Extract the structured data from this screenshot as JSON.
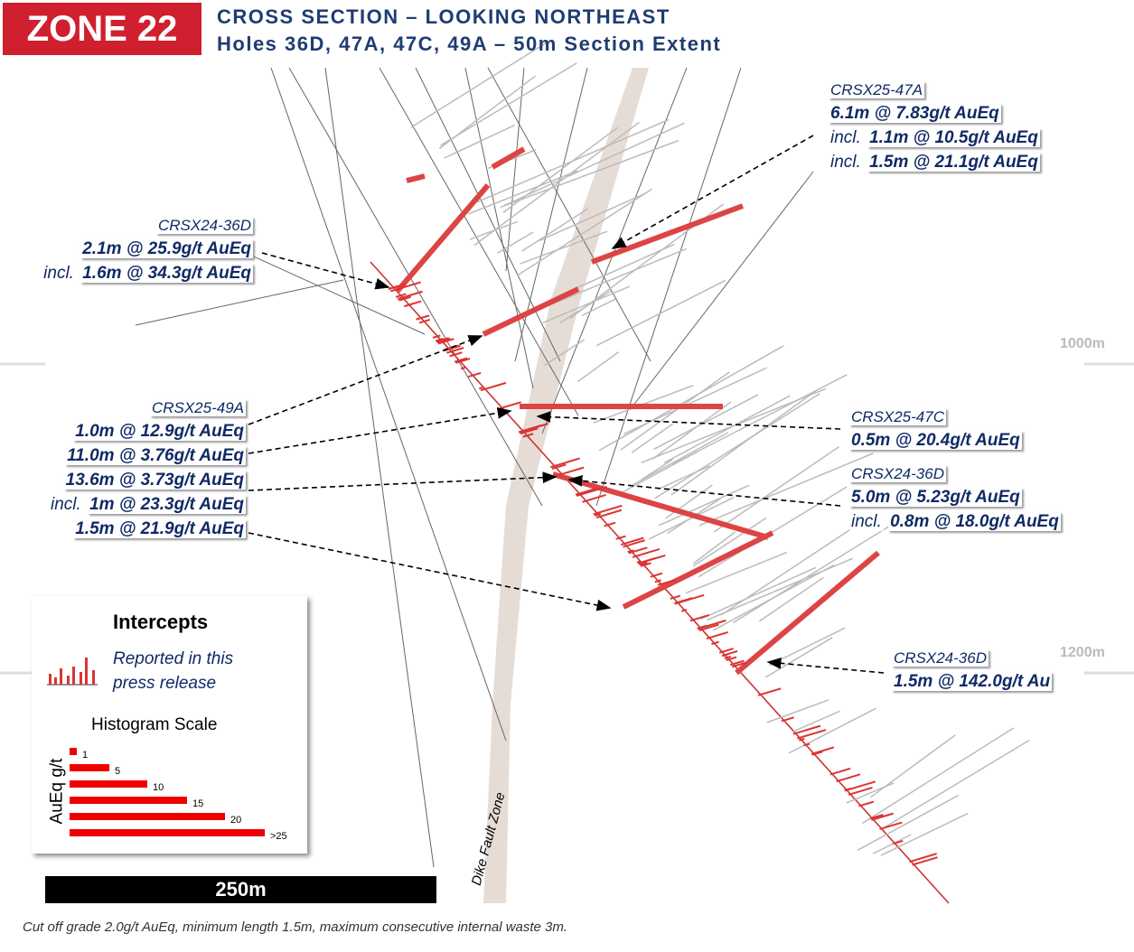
{
  "header": {
    "badge": "ZONE 22",
    "title": "CROSS SECTION – LOOKING NORTHEAST",
    "subtitle": "Holes 36D, 47A, 47C, 49A – 50m Section Extent"
  },
  "depth_labels": [
    "1000m",
    "1200m"
  ],
  "callouts": [
    {
      "hole": "CRSX25-47A",
      "lines": [
        {
          "text": "6.1m @ 7.83g/t AuEq"
        },
        {
          "prefix": "incl.",
          "text": "1.1m @ 10.5g/t AuEq"
        },
        {
          "prefix": "incl.",
          "text": "1.5m @ 21.1g/t AuEq"
        }
      ]
    },
    {
      "hole": "CRSX24-36D",
      "lines": [
        {
          "text": "2.1m @ 25.9g/t AuEq"
        },
        {
          "prefix": "incl.",
          "text": "1.6m @ 34.3g/t AuEq"
        }
      ]
    },
    {
      "hole": "CRSX25-49A",
      "lines": [
        {
          "text": "1.0m @ 12.9g/t AuEq"
        },
        {
          "text": "11.0m @ 3.76g/t AuEq"
        },
        {
          "text": "13.6m @ 3.73g/t AuEq"
        },
        {
          "prefix": "incl.",
          "text": "1m @ 23.3g/t AuEq"
        },
        {
          "text": "1.5m @ 21.9g/t AuEq"
        }
      ]
    },
    {
      "hole": "CRSX25-47C",
      "lines": [
        {
          "text": "0.5m @ 20.4g/t AuEq"
        }
      ]
    },
    {
      "hole": "CRSX24-36D",
      "lines": [
        {
          "text": "5.0m @ 5.23g/t AuEq"
        },
        {
          "prefix": "incl.",
          "text": "0.8m @ 18.0g/t AuEq"
        }
      ]
    },
    {
      "hole": "CRSX24-36D",
      "lines": [
        {
          "text": "1.5m @ 142.0g/t Au"
        }
      ]
    }
  ],
  "legend": {
    "title": "Intercepts",
    "description": [
      "Reported in this",
      "press release"
    ],
    "scale_title": "Histogram Scale",
    "scale_axis": "AuEq g/t",
    "scale_labels": [
      "1",
      "5",
      "10",
      "15",
      "20",
      ">25"
    ]
  },
  "fault_label": "Dike Fault Zone",
  "scale_bar": "250m",
  "footnote": "Cut off grade 2.0g/t AuEq, minimum length 1.5m, maximum consecutive internal waste 3m."
}
